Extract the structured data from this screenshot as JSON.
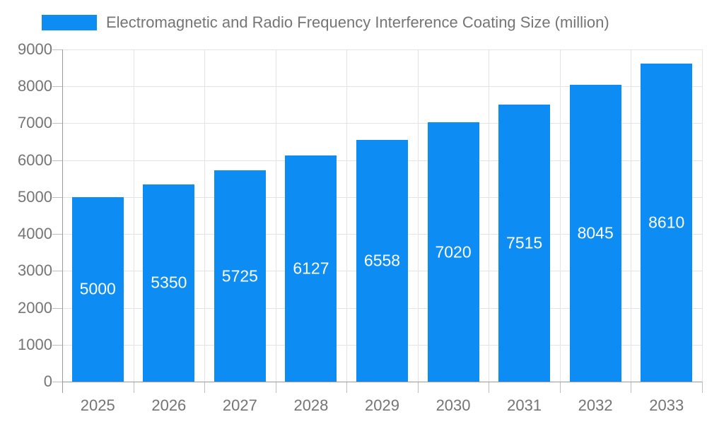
{
  "chart_data": {
    "type": "bar",
    "title": "",
    "xlabel": "",
    "ylabel": "",
    "categories": [
      "2025",
      "2026",
      "2027",
      "2028",
      "2029",
      "2030",
      "2031",
      "2032",
      "2033"
    ],
    "series": [
      {
        "name": "Electromagnetic and Radio Frequency Interference Coating Size (million)",
        "values": [
          5000,
          5350,
          5725,
          6127,
          6558,
          7020,
          7515,
          8045,
          8610
        ],
        "color": "#0d8df4"
      }
    ],
    "ylim": [
      0,
      9000
    ],
    "ytick_step": 1000,
    "ytick_labels": [
      "0",
      "1000",
      "2000",
      "3000",
      "4000",
      "5000",
      "6000",
      "7000",
      "8000",
      "9000"
    ],
    "grid": true,
    "legend_position": "top-left",
    "value_labels": {
      "position": "inside-center",
      "color": "#ffffff"
    },
    "style": {
      "bar_color": "#0d8df4",
      "axis_text_color": "#757575",
      "grid_color": "#e3e3e3",
      "axis_line_color": "#9a9a9a",
      "tick_color": "#bdbdbd",
      "background": "#ffffff"
    }
  }
}
